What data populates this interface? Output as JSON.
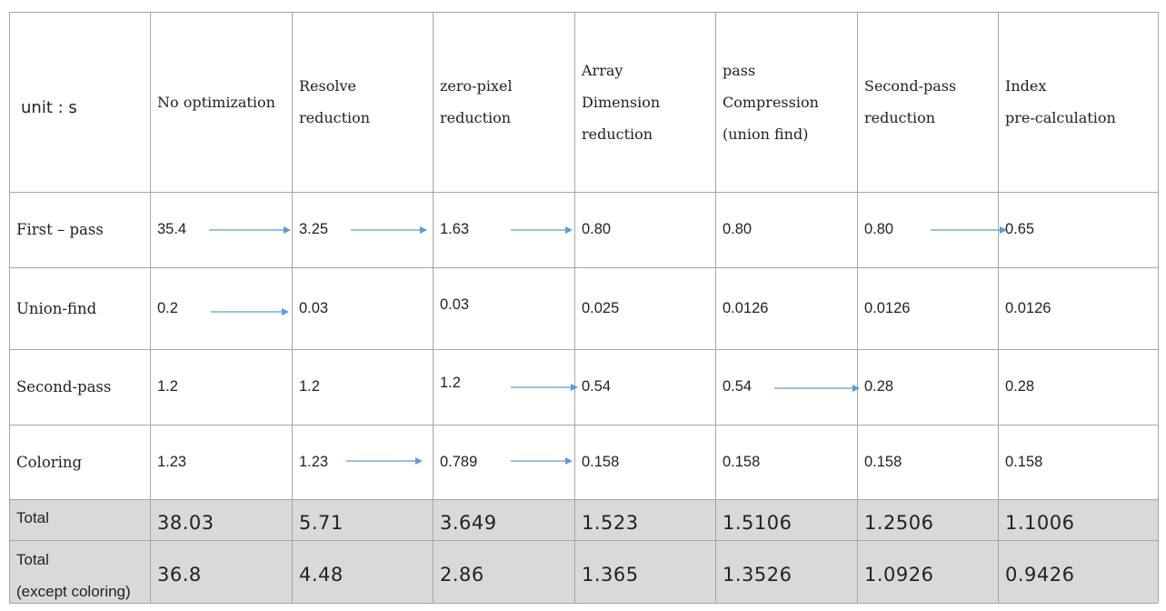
{
  "table": {
    "header": {
      "unit_label": "unit : s",
      "columns": [
        [
          "No optimization"
        ],
        [
          "Resolve",
          "reduction"
        ],
        [
          "zero-pixel",
          "reduction"
        ],
        [
          "Array",
          "Dimension",
          "reduction"
        ],
        [
          "pass",
          "Compression",
          "(union find)"
        ],
        [
          "Second-pass",
          "reduction"
        ],
        [
          "Index",
          "pre-calculation"
        ]
      ]
    },
    "rows": [
      {
        "label": "First – pass",
        "values": [
          "35.4",
          "3.25",
          "1.63",
          "0.80",
          "0.80",
          "0.80",
          "0.65"
        ]
      },
      {
        "label": "Union-find",
        "values": [
          "0.2",
          "0.03",
          "0.03",
          "0.025",
          "0.0126",
          "0.0126",
          "0.0126"
        ]
      },
      {
        "label": "Second-pass",
        "values": [
          "1.2",
          "1.2",
          "1.2",
          "0.54",
          "0.54",
          "0.28",
          "0.28"
        ]
      },
      {
        "label": "Coloring",
        "values": [
          "1.23",
          "1.23",
          "0.789",
          "0.158",
          "0.158",
          "0.158",
          "0.158"
        ]
      }
    ],
    "totals": [
      {
        "label": [
          "Total"
        ],
        "values": [
          "38.03",
          "5.71",
          "3.649",
          "1.523",
          "1.5106",
          "1.2506",
          "1.1006"
        ]
      },
      {
        "label": [
          "Total",
          "(except coloring)"
        ],
        "values": [
          "36.8",
          "4.48",
          "2.86",
          "1.365",
          "1.3526",
          "1.0926",
          "0.9426"
        ]
      }
    ],
    "arrow_color": "#5b9bd5",
    "shade_color": "#d9d9d9",
    "border_color": "#a6a6a6"
  }
}
